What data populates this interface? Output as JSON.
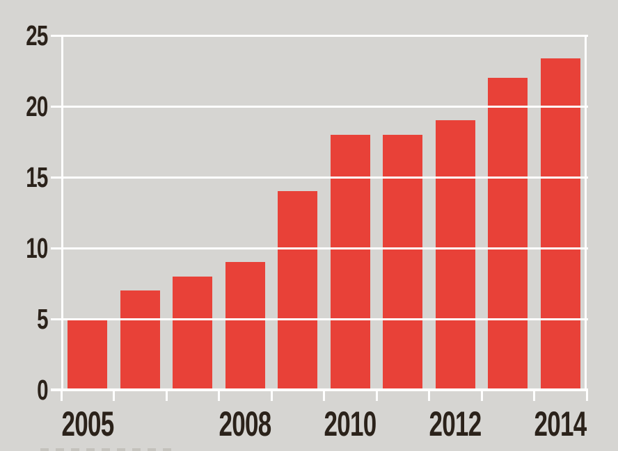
{
  "chart_data": {
    "type": "bar",
    "title": "",
    "xlabel": "",
    "ylabel": "",
    "categories": [
      "2005",
      "2006",
      "2007",
      "2008",
      "2009",
      "2010",
      "2011",
      "2012",
      "2013",
      "2014"
    ],
    "values": [
      5,
      7,
      8,
      9,
      14,
      18,
      18,
      19,
      22,
      23.4
    ],
    "ylim": [
      0,
      25
    ],
    "y_ticks": [
      0,
      5,
      10,
      15,
      20,
      25
    ],
    "x_axis_labels": [
      {
        "text": "2005",
        "category_index": 0
      },
      {
        "text": "2008",
        "category_index": 3
      },
      {
        "text": "2010",
        "category_index": 5
      },
      {
        "text": "2012",
        "category_index": 7
      },
      {
        "text": "2014",
        "category_index": 9
      }
    ],
    "legend": null,
    "grid": {
      "horizontal": true,
      "vertical": false,
      "plot_frame": "white lines left, top, right, bottom"
    },
    "colors": {
      "bar": "#e84138",
      "background": "#d6d5d2",
      "gridline": "#ffffff",
      "text": "#2b221a"
    }
  }
}
